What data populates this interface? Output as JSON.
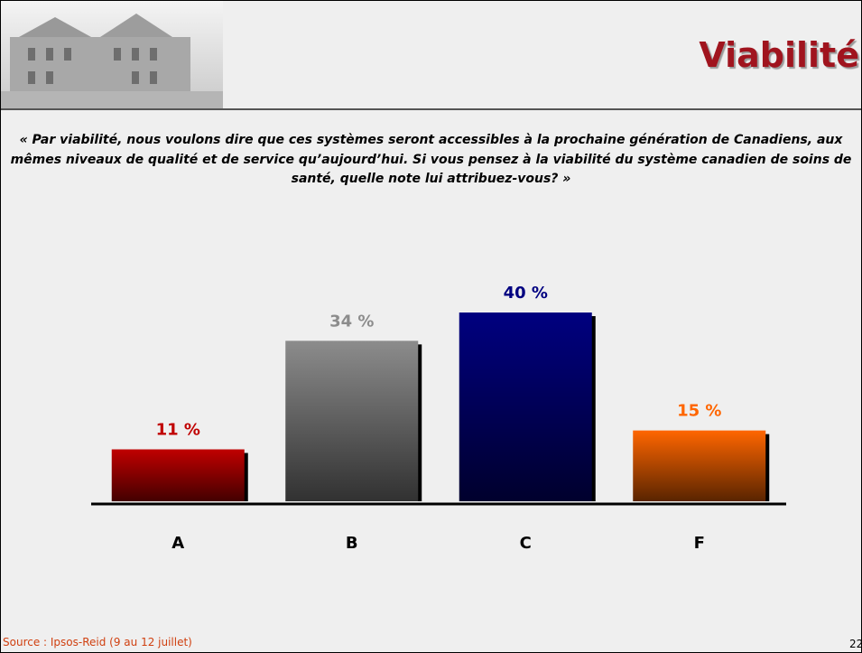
{
  "chart_data": {
    "type": "bar",
    "title": "Viabilité",
    "subtitle": "« Par viabilité, nous voulons dire que ces systèmes seront accessibles à la prochaine génération de Canadiens, aux mêmes niveaux de qualité et de service qu’aujourd’hui. Si vous pensez à la viabilité du système canadien de soins de santé, quelle note lui attribuez-vous? »",
    "categories": [
      "A",
      "B",
      "C",
      "F"
    ],
    "values": [
      11,
      34,
      40,
      15
    ],
    "value_labels": [
      "11 %",
      "34 %",
      "40 %",
      "15 %"
    ],
    "colors": [
      "#c00000",
      "#8c8c8c",
      "#000080",
      "#ff6600"
    ],
    "source": "Source : Ipsos-Reid (9 au 12 juillet)",
    "page_number": "22"
  }
}
